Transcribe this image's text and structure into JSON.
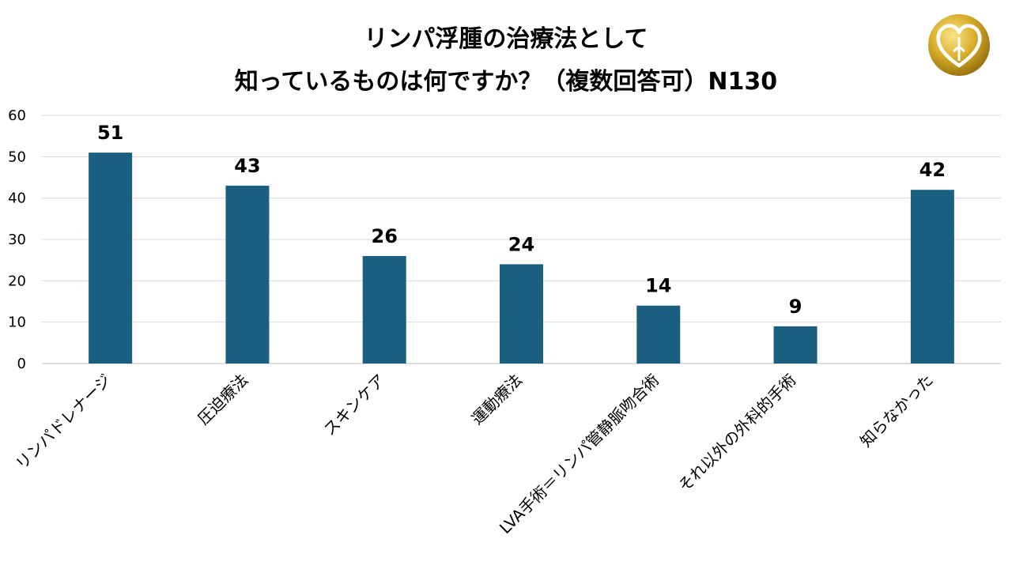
{
  "title": {
    "line1": "リンパ浮腫の治療法として",
    "line2": "知っているものは何ですか？（複数回答可）N130"
  },
  "logo": {
    "icon": "gold-heart-gk-emblem-icon",
    "colors": [
      "#b8860b",
      "#f5d76e",
      "#ffffff"
    ]
  },
  "colors": {
    "bar": "#1a5e80",
    "grid": "#d9d9d9",
    "axis": "#bfbfbf"
  },
  "chart_data": {
    "type": "bar",
    "categories": [
      "リンパドレナージ",
      "圧迫療法",
      "スキンケア",
      "運動療法",
      "LVA手術＝リンパ管静脈吻合術",
      "それ以外の外科的手術",
      "知らなかった"
    ],
    "values": [
      51,
      43,
      26,
      24,
      14,
      9,
      42
    ],
    "ylim": [
      0,
      60
    ],
    "yticks": [
      0,
      10,
      20,
      30,
      40,
      50,
      60
    ],
    "grid": true,
    "data_labels": true,
    "legend": false
  }
}
